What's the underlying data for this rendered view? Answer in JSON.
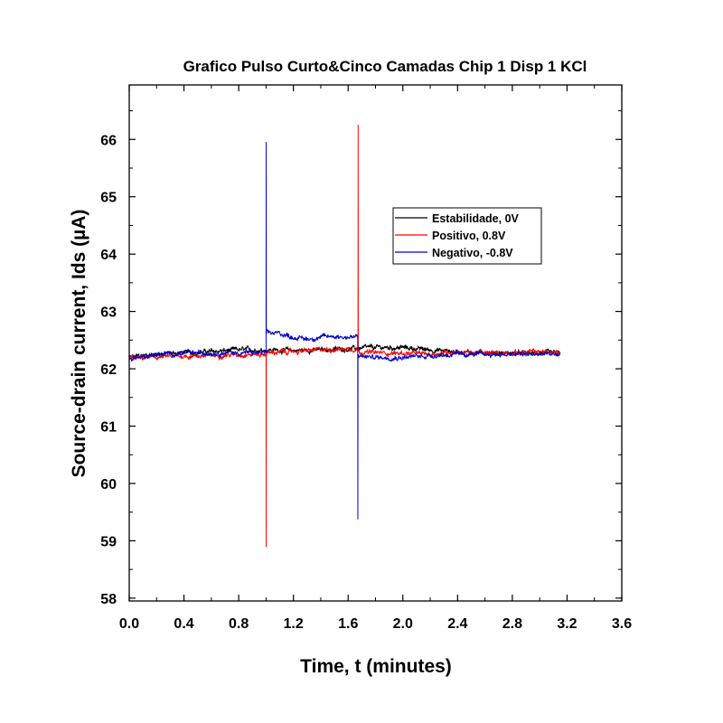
{
  "chart_data": {
    "type": "line",
    "title": "Grafico Pulso Curto&Cinco Camadas Chip 1 Disp 1 KCl",
    "xlabel": "Time, t (minutes)",
    "ylabel": "Source-drain current, Ids (µA)",
    "xlim": [
      0.0,
      3.6
    ],
    "ylim": [
      57.95,
      66.95
    ],
    "x_ticks": [
      0.0,
      0.4,
      0.8,
      1.2,
      1.6,
      2.0,
      2.4,
      2.8,
      3.2,
      3.6
    ],
    "x_tick_labels": [
      "0.0",
      "0.4",
      "0.8",
      "1.2",
      "1.6",
      "2.0",
      "2.4",
      "2.8",
      "3.2",
      "3.6"
    ],
    "y_ticks": [
      58,
      59,
      60,
      61,
      62,
      63,
      64,
      65,
      66
    ],
    "y_tick_labels": [
      "58",
      "59",
      "60",
      "61",
      "62",
      "63",
      "64",
      "65",
      "66"
    ],
    "legend_position": "top-right",
    "series": [
      {
        "name": "Estabilidade, 0V",
        "color": "#000000",
        "x": [
          0.0,
          0.2,
          0.4,
          0.6,
          0.8,
          1.0,
          1.2,
          1.4,
          1.6,
          1.8,
          2.0,
          2.2,
          2.4,
          2.6,
          2.8,
          3.0,
          3.15
        ],
        "y": [
          62.2,
          62.26,
          62.28,
          62.3,
          62.33,
          62.33,
          62.32,
          62.33,
          62.35,
          62.37,
          62.37,
          62.33,
          62.3,
          62.28,
          62.27,
          62.27,
          62.27
        ]
      },
      {
        "name": "Positivo, 0.8V",
        "color": "#ff0000",
        "x": [
          0.0,
          0.2,
          0.4,
          0.6,
          0.8,
          1.0,
          1.001,
          1.002,
          1.003,
          1.2,
          1.4,
          1.6,
          1.672,
          1.673,
          1.674,
          1.675,
          1.8,
          2.0,
          2.2,
          2.4,
          2.6,
          2.8,
          3.0,
          3.15
        ],
        "y": [
          62.18,
          62.2,
          62.22,
          62.23,
          62.25,
          62.25,
          58.9,
          62.26,
          62.28,
          62.3,
          62.33,
          62.35,
          62.35,
          66.25,
          62.33,
          62.3,
          62.28,
          62.27,
          62.26,
          62.3,
          62.27,
          62.28,
          62.3,
          62.28
        ]
      },
      {
        "name": "Negativo, -0.8V",
        "color": "#0000cc",
        "x": [
          0.0,
          0.2,
          0.4,
          0.6,
          0.8,
          1.0,
          1.001,
          1.002,
          1.003,
          1.1,
          1.2,
          1.3,
          1.4,
          1.5,
          1.6,
          1.67,
          1.671,
          1.672,
          1.673,
          1.8,
          2.0,
          2.2,
          2.4,
          2.6,
          2.8,
          3.0,
          3.15
        ],
        "y": [
          62.18,
          62.25,
          62.27,
          62.28,
          62.28,
          62.28,
          65.95,
          62.6,
          62.62,
          62.62,
          62.55,
          62.52,
          62.55,
          62.57,
          62.55,
          62.55,
          59.38,
          62.22,
          62.22,
          62.2,
          62.2,
          62.23,
          62.25,
          62.25,
          62.25,
          62.25,
          62.25
        ]
      }
    ]
  }
}
